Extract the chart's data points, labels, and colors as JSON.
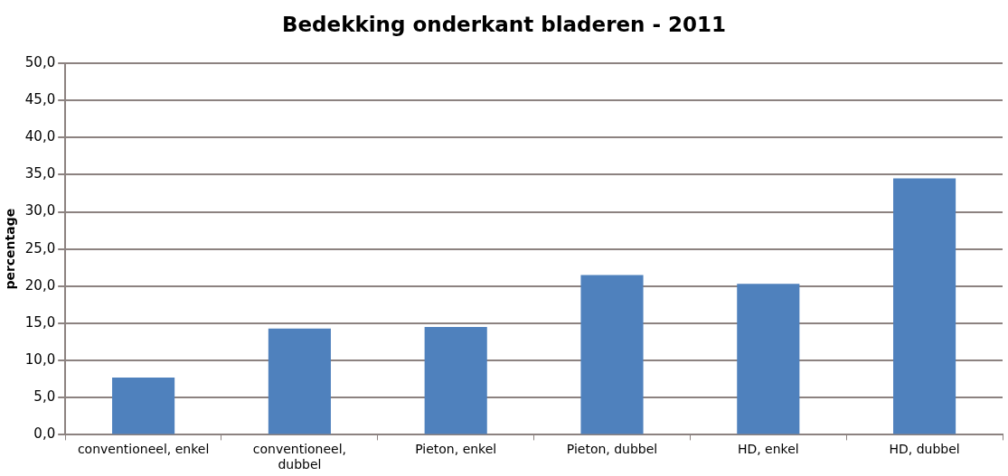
{
  "chart_data": {
    "type": "bar",
    "title": "Bedekking onderkant bladeren - 2011",
    "ylabel": "percentage",
    "categories": [
      "conventioneel, enkel",
      "conventioneel, dubbel",
      "Pieton, enkel",
      "Pieton, dubbel",
      "HD, enkel",
      "HD, dubbel"
    ],
    "values": [
      7.7,
      14.3,
      14.5,
      21.5,
      20.3,
      34.5
    ],
    "color": "#4f81bd",
    "ylim": [
      0,
      50
    ],
    "yticks": [
      {
        "value": 0,
        "label": "0,0"
      },
      {
        "value": 5,
        "label": "5,0"
      },
      {
        "value": 10,
        "label": "10,0"
      },
      {
        "value": 15,
        "label": "15,0"
      },
      {
        "value": 20,
        "label": "20,0"
      },
      {
        "value": 25,
        "label": "25,0"
      },
      {
        "value": 30,
        "label": "30,0"
      },
      {
        "value": 35,
        "label": "35,0"
      },
      {
        "value": 40,
        "label": "40,0"
      },
      {
        "value": 45,
        "label": "45,0"
      },
      {
        "value": 50,
        "label": "50,0"
      }
    ],
    "grid": "y",
    "legend": false
  }
}
